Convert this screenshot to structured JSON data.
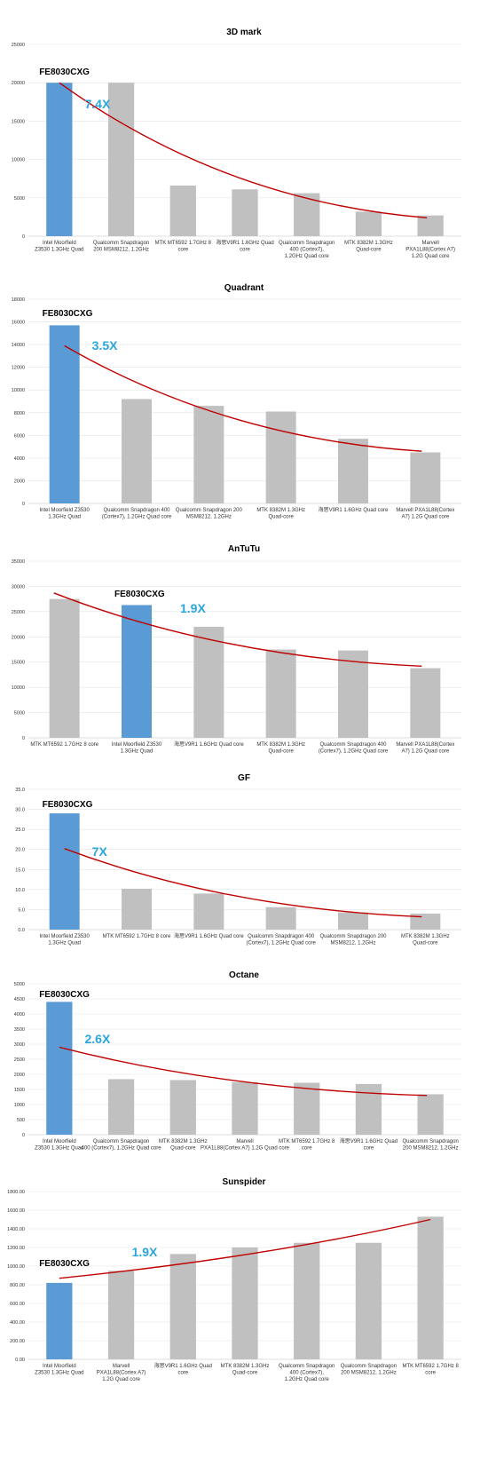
{
  "colors": {
    "highlight_bar": "#5b9bd5",
    "other_bar": "#c0c0c0",
    "trend_line": "#c00000",
    "ratio_text": "#2aa6dc"
  },
  "chart_data": [
    {
      "type": "bar",
      "title": "3D mark",
      "categories": [
        "Intel Moorfield Z3530 1.3GHz Quad",
        "Qualcomm Snapdragon 200 MSM8212, 1.2GHz",
        "MTK MT6592 1.7GHz 8 core",
        "海思V9R1 1.6GHz Quad core",
        "Qualcomm Snapdragon 400 (Cortex7), 1.2GHz Quad core",
        "MTK 8382M 1.3GHz Quad-core",
        "Marvell PXA1L88(Cortex A7) 1.2G Quad core"
      ],
      "values": [
        20000,
        20000,
        6600,
        6100,
        5600,
        3200,
        2700
      ],
      "ylim": [
        0,
        25000
      ],
      "yticks": [
        "0",
        "5000",
        "10000",
        "15000",
        "20000",
        "25000"
      ],
      "highlight_index": 0,
      "highlight_label": "FE8030CXG",
      "ratio_label": "7.4X",
      "trend": {
        "start": 20000,
        "end": 2400
      }
    },
    {
      "type": "bar",
      "title": "Quadrant",
      "categories": [
        "Intel Moorfield Z3530 1.3GHz Quad",
        "Qualcomm Snapdragon 400 (Cortex7), 1.2GHz Quad core",
        "Qualcomm Snapdragon 200 MSM8212, 1.2GHz",
        "MTK 8382M 1.3GHz Quad-core",
        "海思V9R1 1.6GHz Quad core",
        "Marvell PXA1L88(Cortex A7) 1.2G Quad core"
      ],
      "values": [
        15700,
        9200,
        8600,
        8100,
        5700,
        4500
      ],
      "ylim": [
        0,
        18000
      ],
      "yticks": [
        "0",
        "2000",
        "4000",
        "6000",
        "8000",
        "10000",
        "12000",
        "14000",
        "16000",
        "18000"
      ],
      "highlight_index": 0,
      "highlight_label": "FE8030CXG",
      "ratio_label": "3.5X",
      "trend": {
        "start": 13900,
        "end": 4600
      }
    },
    {
      "type": "bar",
      "title": "AnTuTu",
      "categories": [
        "MTK MT6592 1.7GHz 8 core",
        "Intel Moorfield Z3530 1.3GHz Quad",
        "海思V9R1 1.6GHz Quad core",
        "MTK 8382M 1.3GHz Quad-core",
        "Qualcomm Snapdragon 400 (Cortex7), 1.2GHz Quad core",
        "Marvell PXA1L88(Cortex A7) 1.2G Quad core"
      ],
      "values": [
        27500,
        26300,
        22000,
        17500,
        17300,
        13800
      ],
      "ylim": [
        0,
        35000
      ],
      "yticks": [
        "0",
        "5000",
        "10000",
        "15000",
        "20000",
        "25000",
        "30000",
        "35000"
      ],
      "highlight_index": 1,
      "highlight_label": "FE8030CXG",
      "ratio_label": "1.9X",
      "trend": {
        "start": 28700,
        "end": 14200
      }
    },
    {
      "type": "bar",
      "title": "GF",
      "categories": [
        "Intel Moorfield Z3530 1.3GHz Quad",
        "MTK MT6592 1.7GHz 8 core",
        "海思V9R1 1.6GHz Quad core",
        "Qualcomm Snapdragon 400 (Cortex7), 1.2GHz Quad core",
        "Qualcomm Snapdragon 200 MSM8212, 1.2GHz",
        "MTK 8382M 1.3GHz Quad-core"
      ],
      "values": [
        29.0,
        10.2,
        9.0,
        5.6,
        4.3,
        4.0
      ],
      "ylim": [
        0,
        35
      ],
      "yticks": [
        "0.0",
        "5.0",
        "10.0",
        "15.0",
        "20.0",
        "25.0",
        "30.0",
        "35.0"
      ],
      "highlight_index": 0,
      "highlight_label": "FE8030CXG",
      "ratio_label": "7X",
      "trend": {
        "start": 20.2,
        "end": 3.2
      }
    },
    {
      "type": "bar",
      "title": "Octane",
      "categories": [
        "Intel Moorfield Z3530 1.3GHz Quad",
        "Qualcomm Snapdragon 400 (Cortex7), 1.2GHz Quad core",
        "MTK 8382M 1.3GHz Quad-core",
        "Marvell PXA1L88(Cortex A7) 1.2G Quad core",
        "MTK MT6592 1.7GHz 8 core",
        "海思V9R1 1.6GHz Quad core",
        "Qualcomm Snapdragon 200 MSM8212, 1.2GHz"
      ],
      "values": [
        4400,
        1840,
        1810,
        1740,
        1720,
        1680,
        1340
      ],
      "ylim": [
        0,
        5000
      ],
      "yticks": [
        "0",
        "500",
        "1000",
        "1500",
        "2000",
        "2500",
        "3000",
        "3500",
        "4000",
        "4500",
        "5000"
      ],
      "highlight_index": 0,
      "highlight_label": "FE8030CXG",
      "ratio_label": "2.6X",
      "trend": {
        "start": 2900,
        "end": 1300
      }
    },
    {
      "type": "bar",
      "title": "Sunspider",
      "categories": [
        "Intel Moorfield Z3530 1.3GHz Quad",
        "Marvell PXA1L88(Cortex A7) 1.2G Quad core",
        "海思V9R1 1.6GHz Quad core",
        "MTK 8382M 1.3GHz Quad-core",
        "Qualcomm Snapdragon 400 (Cortex7), 1.2GHz Quad core",
        "Qualcomm Snapdragon 200 MSM8212, 1.2GHz",
        "MTK MT6592 1.7GHz 8 core"
      ],
      "values": [
        820,
        950,
        1130,
        1200,
        1250,
        1250,
        1530
      ],
      "ylim": [
        0,
        1800
      ],
      "yticks": [
        "0.00",
        "200.00",
        "400.00",
        "600.00",
        "800.00",
        "1000.00",
        "1200.00",
        "1400.00",
        "1600.00",
        "1800.00"
      ],
      "highlight_index": 0,
      "highlight_label": "FE8030CXG",
      "ratio_label": "1.9X",
      "trend": {
        "start": 870,
        "end": 1500
      }
    }
  ]
}
